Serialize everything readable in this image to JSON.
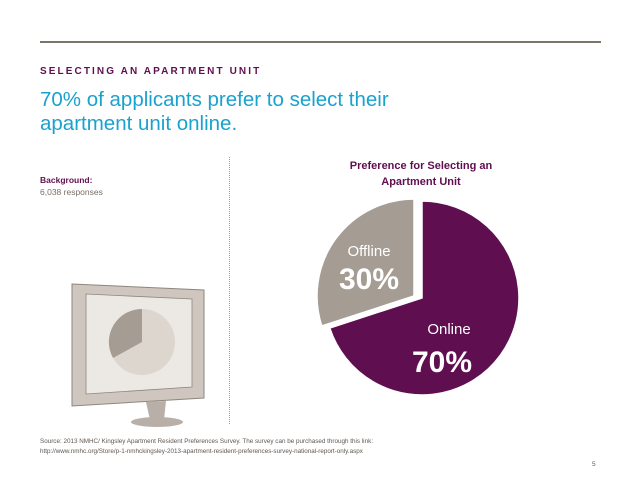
{
  "header": {
    "section_label": "SELECTING AN APARTMENT UNIT",
    "headline": "70% of applicants prefer to select their apartment unit online."
  },
  "background": {
    "label": "Background:",
    "value": "6,038 responses"
  },
  "chart_data": {
    "type": "pie",
    "title": "Preference for Selecting an Apartment Unit",
    "slices": [
      {
        "label": "Online",
        "value": 70,
        "value_label": "70%",
        "color": "#5f0f4f"
      },
      {
        "label": "Offline",
        "value": 30,
        "value_label": "30%",
        "color": "#a59d93"
      }
    ]
  },
  "footer": {
    "source_line1": "Source: 2013 NMHC/ Kingsley Apartment Resident Preferences Survey. The survey can be purchased through this link:",
    "source_line2": "http://www.nmhc.org/Store/p-1-nmhckingsley-2013-apartment-resident-preferences-survey-national-report-only.aspx",
    "page_number": "5"
  },
  "colors": {
    "brand_purple": "#5f0f4f",
    "accent_blue": "#1aa2cf",
    "taupe": "#a59d93",
    "rule": "#7d746c"
  },
  "icons": [
    "computer-monitor-icon"
  ]
}
